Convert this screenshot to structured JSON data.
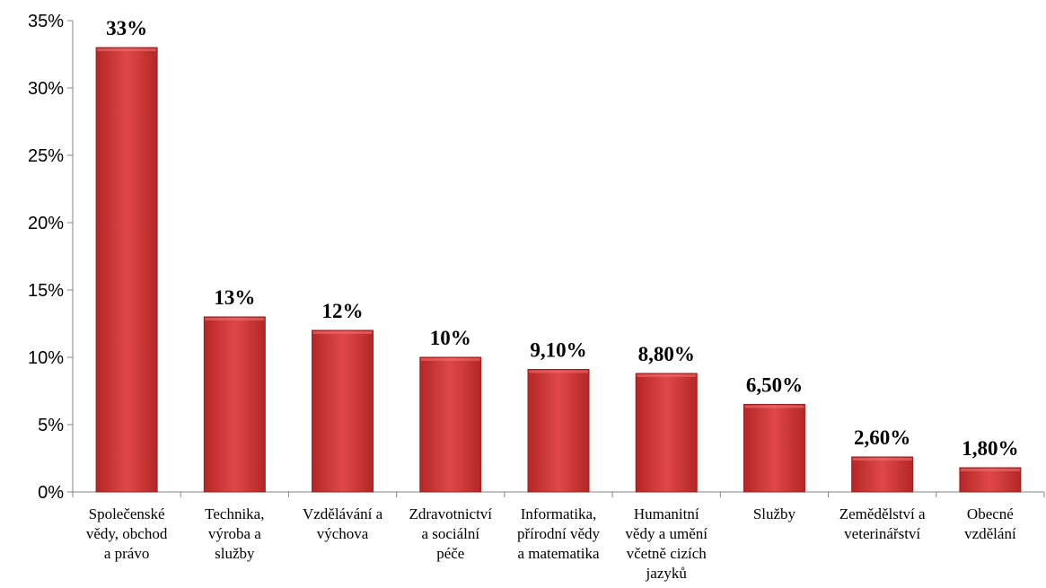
{
  "chart_data": {
    "type": "bar",
    "categories": [
      [
        "Společenské",
        "vědy, obchod",
        "a právo"
      ],
      [
        "Technika,",
        "výroba a",
        "služby"
      ],
      [
        "Vzdělávání a",
        "výchova"
      ],
      [
        "Zdravotnictví",
        "a sociální",
        "péče"
      ],
      [
        "Informatika,",
        "přírodní vědy",
        "a matematika"
      ],
      [
        "Humanitní",
        "vědy a umění",
        "včetně cizích",
        "jazyků"
      ],
      [
        "Služby"
      ],
      [
        "Zemědělství a",
        "veterinářství"
      ],
      [
        "Obecné",
        "vzdělání"
      ]
    ],
    "values": [
      33,
      13,
      12,
      10,
      9.1,
      8.8,
      6.5,
      2.6,
      1.8
    ],
    "data_labels": [
      "33%",
      "13%",
      "12%",
      "10%",
      "9,10%",
      "8,80%",
      "6,50%",
      "2,60%",
      "1,80%"
    ],
    "yticks": [
      0,
      5,
      10,
      15,
      20,
      25,
      30,
      35
    ],
    "ytick_labels": [
      "0%",
      "5%",
      "10%",
      "15%",
      "20%",
      "25%",
      "30%",
      "35%"
    ],
    "ylim": [
      0,
      35
    ],
    "grid": false,
    "legend": "none",
    "bar_color": "#d63a3a",
    "bar_color_dark": "#9e1c1c",
    "axis_color": "#868686"
  }
}
